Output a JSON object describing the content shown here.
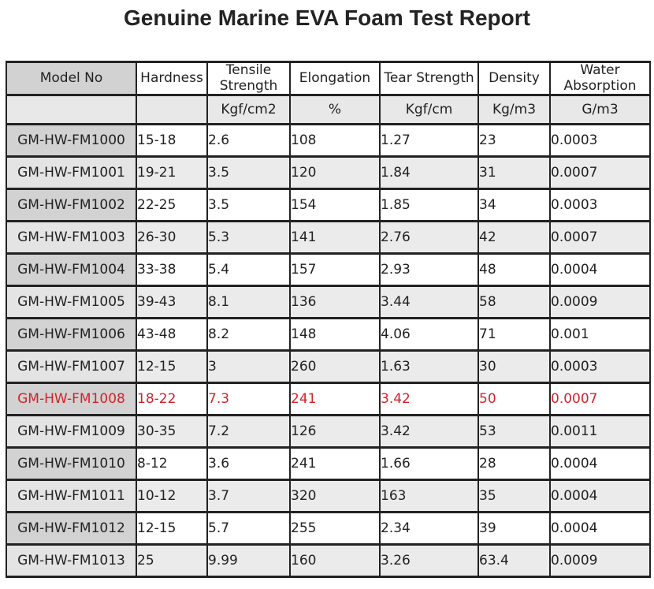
{
  "title": "Genuine Marine EVA Foam Test Report",
  "colors": {
    "highlight_text": "#d2232a",
    "border": "#222222",
    "header_model_bg": "#d2d2d2",
    "model_cell_dark_bg": "#d2d2d2",
    "model_cell_light_bg": "#e4e4e4",
    "alt_row_bg": "#ebebeb",
    "units_row_bg": "#e8e8e8"
  },
  "table": {
    "columns": [
      "Model No",
      "Hardness",
      "Tensile Strength",
      "Elongation",
      "Tear Strength",
      "Density",
      "Water Absorption"
    ],
    "units": [
      "",
      "",
      "Kgf/cm2",
      "%",
      "Kgf/cm",
      "Kg/m3",
      "G/m3"
    ],
    "highlight_row_index": 8,
    "rows": [
      [
        "GM-HW-FM1000",
        "15-18",
        "2.6",
        "108",
        "1.27",
        "23",
        "0.0003"
      ],
      [
        "GM-HW-FM1001",
        "19-21",
        "3.5",
        "120",
        "1.84",
        "31",
        "0.0007"
      ],
      [
        "GM-HW-FM1002",
        "22-25",
        "3.5",
        "154",
        "1.85",
        "34",
        "0.0003"
      ],
      [
        "GM-HW-FM1003",
        "26-30",
        "5.3",
        "141",
        "2.76",
        "42",
        "0.0007"
      ],
      [
        "GM-HW-FM1004",
        "33-38",
        "5.4",
        "157",
        "2.93",
        "48",
        "0.0004"
      ],
      [
        "GM-HW-FM1005",
        "39-43",
        "8.1",
        "136",
        "3.44",
        "58",
        "0.0009"
      ],
      [
        "GM-HW-FM1006",
        "43-48",
        "8.2",
        "148",
        "4.06",
        "71",
        "0.001"
      ],
      [
        "GM-HW-FM1007",
        "12-15",
        "3",
        "260",
        "1.63",
        "30",
        "0.0003"
      ],
      [
        "GM-HW-FM1008",
        "18-22",
        "7.3",
        "241",
        "3.42",
        "50",
        "0.0007"
      ],
      [
        "GM-HW-FM1009",
        "30-35",
        "7.2",
        "126",
        "3.42",
        "53",
        "0.0011"
      ],
      [
        "GM-HW-FM1010",
        "8-12",
        "3.6",
        "241",
        "1.66",
        "28",
        "0.0004"
      ],
      [
        "GM-HW-FM1011",
        "10-12",
        "3.7",
        "320",
        "163",
        "35",
        "0.0004"
      ],
      [
        "GM-HW-FM1012",
        "12-15",
        "5.7",
        "255",
        "2.34",
        "39",
        "0.0004"
      ],
      [
        "GM-HW-FM1013",
        "25",
        "9.99",
        "160",
        "3.26",
        "63.4",
        "0.0009"
      ]
    ]
  }
}
